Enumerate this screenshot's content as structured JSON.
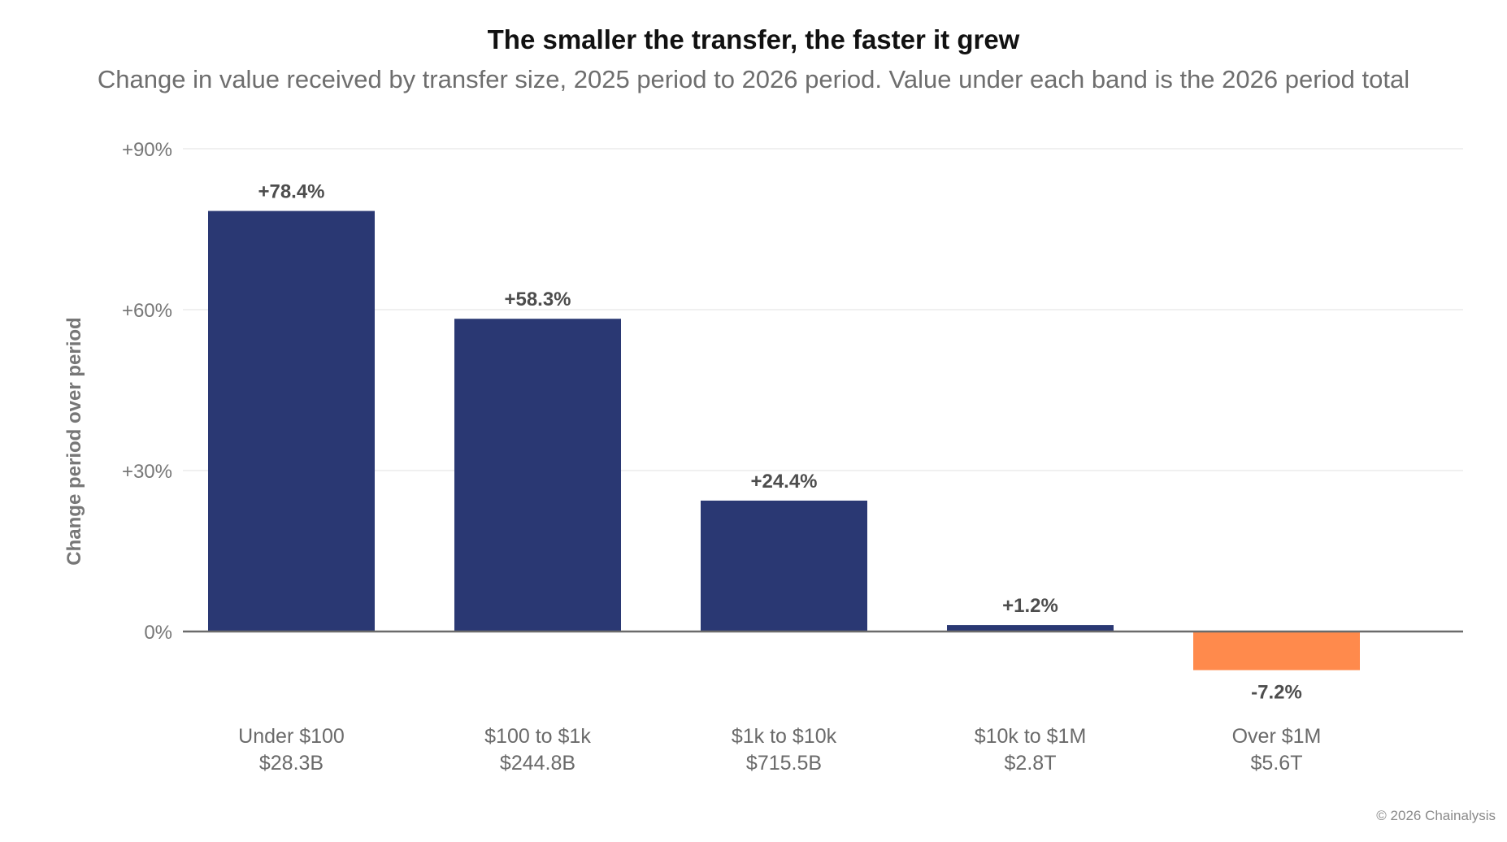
{
  "title": "The smaller the transfer, the faster it grew",
  "subtitle": "Change in value received by transfer size, 2025 period to 2026 period. Value under each band is the 2026 period total",
  "footer": "© 2026 Chainalysis",
  "colors": {
    "positive": "#2a3873",
    "negative": "#ff8a4c",
    "grid": "#ececec",
    "zero_line": "#6b6b6b",
    "tick_text": "#777777",
    "label_text": "#4d4d4d",
    "category_text": "#6a6a6a"
  },
  "chart_data": {
    "type": "bar",
    "categories": [
      "Under $100",
      "$100 to $1k",
      "$1k to $10k",
      "$10k to $1M",
      "Over $1M"
    ],
    "category_totals": [
      "$28.3B",
      "$244.8B",
      "$715.5B",
      "$2.8T",
      "$5.6T"
    ],
    "values": [
      78.4,
      58.3,
      24.4,
      1.2,
      -7.2
    ],
    "value_labels": [
      "+78.4%",
      "+58.3%",
      "+24.4%",
      "+1.2%",
      "-7.2%"
    ],
    "ylabel": "Change period over period",
    "yticks": [
      0,
      30,
      60,
      90
    ],
    "ytick_labels": [
      "0%",
      "+30%",
      "+60%",
      "+90%"
    ],
    "ylim": [
      -7.2,
      90
    ],
    "grid": true,
    "legend": "none"
  }
}
